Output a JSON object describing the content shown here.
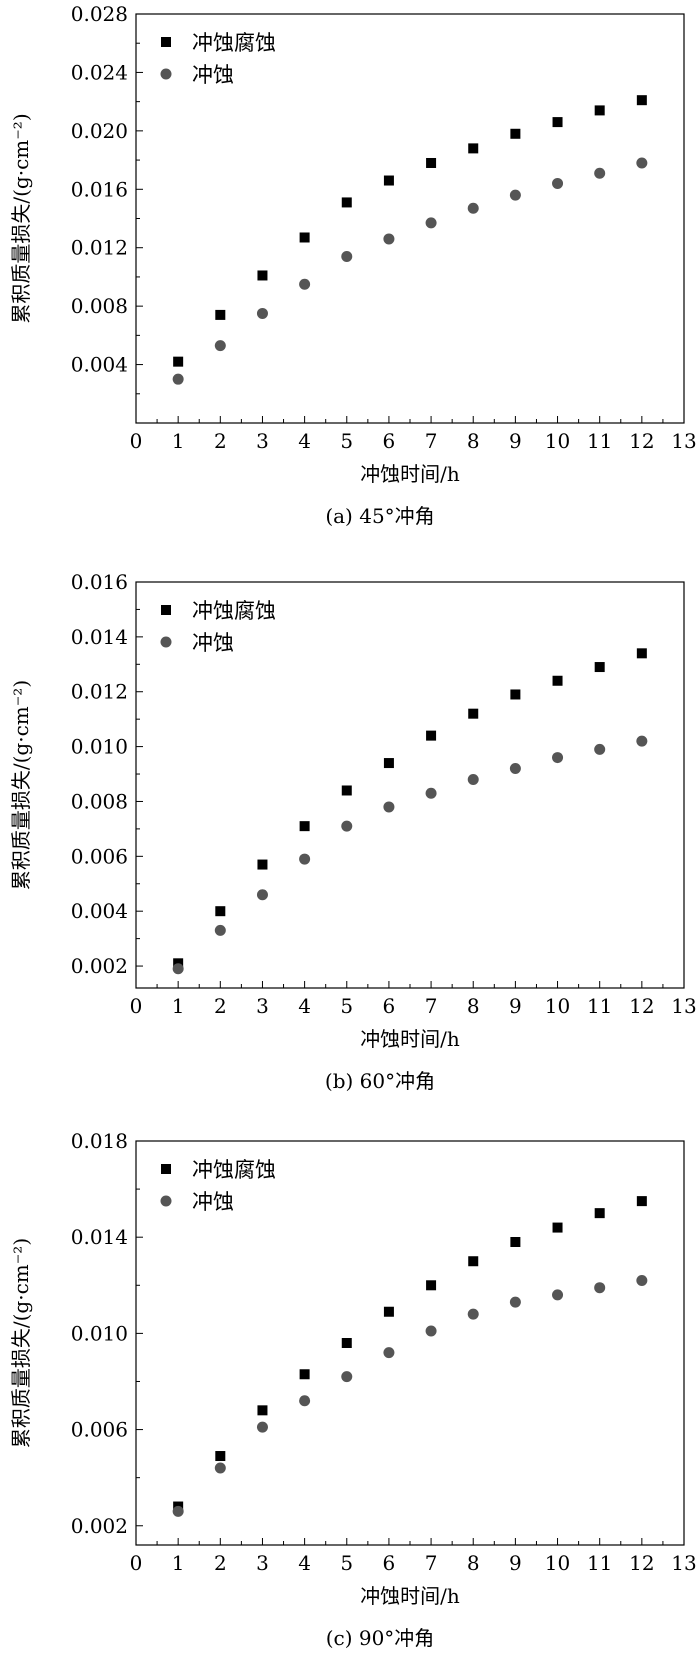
{
  "chart_data": [
    {
      "type": "scatter",
      "caption": "(a) 45°冲角",
      "xlabel": "冲蚀时间/h",
      "ylabel": "累积质量损失/(g·cm⁻²)",
      "xlim": [
        0,
        13
      ],
      "ylim": [
        0,
        0.028
      ],
      "xticks": [
        0,
        1,
        2,
        3,
        4,
        5,
        6,
        7,
        8,
        9,
        10,
        11,
        12,
        13
      ],
      "yticks": [
        0.004,
        0.008,
        0.012,
        0.016,
        0.02,
        0.024,
        0.028
      ],
      "yticklabels": [
        "0.004",
        "0.008",
        "0.012",
        "0.016",
        "0.020",
        "0.024",
        "0.028"
      ],
      "legend_position": "top-left",
      "x": [
        1,
        2,
        3,
        4,
        5,
        6,
        7,
        8,
        9,
        10,
        11,
        12
      ],
      "series": [
        {
          "name": "冲蚀腐蚀",
          "marker": "square",
          "color": "#000000",
          "values": [
            0.0042,
            0.0074,
            0.0101,
            0.0127,
            0.0151,
            0.0166,
            0.0178,
            0.0188,
            0.0198,
            0.0206,
            0.0214,
            0.0221
          ]
        },
        {
          "name": "冲蚀",
          "marker": "circle",
          "color": "#555555",
          "values": [
            0.003,
            0.0053,
            0.0075,
            0.0095,
            0.0114,
            0.0126,
            0.0137,
            0.0147,
            0.0156,
            0.0164,
            0.0171,
            0.0178
          ]
        }
      ]
    },
    {
      "type": "scatter",
      "caption": "(b) 60°冲角",
      "xlabel": "冲蚀时间/h",
      "ylabel": "累积质量损失/(g·cm⁻²)",
      "xlim": [
        0,
        13
      ],
      "ylim": [
        0.0012,
        0.016
      ],
      "xticks": [
        0,
        1,
        2,
        3,
        4,
        5,
        6,
        7,
        8,
        9,
        10,
        11,
        12,
        13
      ],
      "yticks": [
        0.002,
        0.004,
        0.006,
        0.008,
        0.01,
        0.012,
        0.014,
        0.016
      ],
      "yticklabels": [
        "0.002",
        "0.004",
        "0.006",
        "0.008",
        "0.010",
        "0.012",
        "0.014",
        "0.016"
      ],
      "legend_position": "top-left",
      "x": [
        1,
        2,
        3,
        4,
        5,
        6,
        7,
        8,
        9,
        10,
        11,
        12
      ],
      "series": [
        {
          "name": "冲蚀腐蚀",
          "marker": "square",
          "color": "#000000",
          "values": [
            0.0021,
            0.004,
            0.0057,
            0.0071,
            0.0084,
            0.0094,
            0.0104,
            0.0112,
            0.0119,
            0.0124,
            0.0129,
            0.0134
          ]
        },
        {
          "name": "冲蚀",
          "marker": "circle",
          "color": "#555555",
          "values": [
            0.0019,
            0.0033,
            0.0046,
            0.0059,
            0.0071,
            0.0078,
            0.0083,
            0.0088,
            0.0092,
            0.0096,
            0.0099,
            0.0102
          ]
        }
      ]
    },
    {
      "type": "scatter",
      "caption": "(c) 90°冲角",
      "xlabel": "冲蚀时间/h",
      "ylabel": "累积质量损失/(g·cm⁻²)",
      "xlim": [
        0,
        13
      ],
      "ylim": [
        0.0012,
        0.018
      ],
      "xticks": [
        0,
        1,
        2,
        3,
        4,
        5,
        6,
        7,
        8,
        9,
        10,
        11,
        12,
        13
      ],
      "yticks": [
        0.002,
        0.006,
        0.01,
        0.014,
        0.018
      ],
      "yticklabels": [
        "0.002",
        "0.006",
        "0.010",
        "0.014",
        "0.018"
      ],
      "legend_position": "top-left",
      "x": [
        1,
        2,
        3,
        4,
        5,
        6,
        7,
        8,
        9,
        10,
        11,
        12
      ],
      "series": [
        {
          "name": "冲蚀腐蚀",
          "marker": "square",
          "color": "#000000",
          "values": [
            0.0028,
            0.0049,
            0.0068,
            0.0083,
            0.0096,
            0.0109,
            0.012,
            0.013,
            0.0138,
            0.0144,
            0.015,
            0.0155
          ]
        },
        {
          "name": "冲蚀",
          "marker": "circle",
          "color": "#555555",
          "values": [
            0.0026,
            0.0044,
            0.0061,
            0.0072,
            0.0082,
            0.0092,
            0.0101,
            0.0108,
            0.0113,
            0.0116,
            0.0119,
            0.0122
          ]
        }
      ]
    }
  ]
}
